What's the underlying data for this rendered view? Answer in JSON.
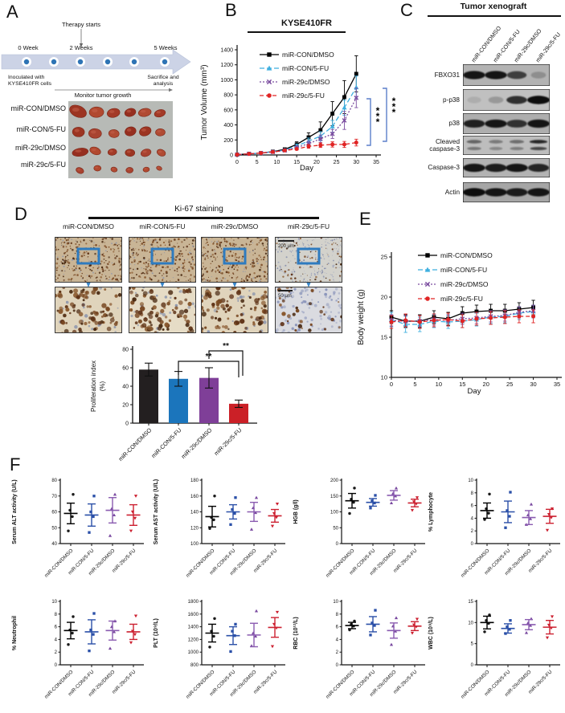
{
  "figure": {
    "groups": [
      "miR-CON/DMSO",
      "miR-CON/5-FU",
      "miR-29c/DMSO",
      "miR-29c/5-FU"
    ],
    "mean_colors": [
      "#000000",
      "#2b50a8",
      "#8a5bb0",
      "#cc2030"
    ],
    "point_colors": [
      "#1a1a1a",
      "#2b50a8",
      "#7a4aa0",
      "#cc2030"
    ],
    "bracket_color": "#5b7fca"
  },
  "panel_a": {
    "label": "A",
    "therapy_label": "Therapy starts",
    "week_labels": [
      "0 Week",
      "2 Weeks",
      "5 Weeks"
    ],
    "start_note_line1": "Inoculated with",
    "start_note_line2": "KYSE410FR cells",
    "end_note_line1": "Sacrifice and",
    "end_note_line2": "analysis",
    "monitor_label": "Monitor tumor growth",
    "row_labels": [
      "miR-CON/DMSO",
      "miR-CON/5-FU",
      "miR-29c/DMSO",
      "miR-29c/5-FU"
    ]
  },
  "panel_b": {
    "label": "B"
  },
  "panel_c": {
    "label": "C",
    "title": "Tumor xenograft",
    "lanes": [
      "miR-CON/DMSO",
      "miR-CON/5-FU",
      "miR-29c/DMSO",
      "miR-29c/5-FU"
    ],
    "rows": [
      {
        "label": "FBXO31",
        "bands": [
          0.95,
          0.95,
          0.7,
          0.22
        ],
        "double": false
      },
      {
        "label": "p-p38",
        "bands": [
          0.1,
          0.22,
          0.8,
          1.0
        ],
        "double": false
      },
      {
        "label": "p38",
        "bands": [
          0.88,
          0.95,
          0.78,
          0.95
        ],
        "double": false
      },
      {
        "label": "Cleaved\ncaspase-3",
        "bands": [
          0.5,
          0.38,
          0.45,
          0.85
        ],
        "double": true
      },
      {
        "label": "Caspase-3",
        "bands": [
          0.95,
          0.9,
          0.95,
          0.85
        ],
        "double": false
      },
      {
        "label": "Actin",
        "bands": [
          1.0,
          0.95,
          0.9,
          0.95
        ],
        "double": false
      }
    ]
  },
  "panel_d": {
    "label": "D",
    "title": "Ki-67 staining",
    "columns": [
      "miR-CON/DMSO",
      "miR-CON/5-FU",
      "miR-29c/DMSO",
      "miR-29c/5-FU"
    ],
    "scalebar_top": "200 μm",
    "scalebar_bottom": "50 μm"
  },
  "panel_e": {
    "label": "E"
  },
  "panel_f": {
    "label": "F"
  },
  "chart_data": [
    {
      "id": "tumor-volume",
      "type": "line",
      "title": "KYSE410FR",
      "xlabel": "Day",
      "ylabel": "Tumor Volume (mm³)",
      "x": [
        0,
        3,
        6,
        9,
        12,
        15,
        18,
        21,
        24,
        27,
        30
      ],
      "xlim": [
        0,
        35
      ],
      "ylim": [
        0,
        1400
      ],
      "xticks": [
        0,
        5,
        10,
        15,
        20,
        25,
        30,
        35
      ],
      "yticks": [
        0,
        200,
        400,
        600,
        800,
        1000,
        1200,
        1400
      ],
      "grid": false,
      "legend_position": "top-left",
      "series": [
        {
          "name": "miR-CON/DMSO",
          "color": "#000000",
          "marker": "square",
          "dash": "solid",
          "values": [
            5,
            15,
            25,
            45,
            75,
            140,
            235,
            330,
            550,
            770,
            1080
          ],
          "errors": [
            3,
            5,
            8,
            12,
            20,
            35,
            60,
            110,
            160,
            220,
            240
          ]
        },
        {
          "name": "miR-CON/5-FU",
          "color": "#3fafdf",
          "marker": "triangle",
          "dash": "6,3",
          "values": [
            5,
            15,
            25,
            42,
            65,
            120,
            185,
            250,
            380,
            630,
            900
          ],
          "errors": [
            3,
            5,
            8,
            10,
            15,
            25,
            40,
            60,
            80,
            100,
            150
          ]
        },
        {
          "name": "miR-29c/DMSO",
          "color": "#7c4ea0",
          "marker": "x",
          "dash": "2,2",
          "values": [
            5,
            15,
            25,
            40,
            60,
            100,
            150,
            215,
            280,
            460,
            760
          ],
          "errors": [
            3,
            5,
            8,
            10,
            15,
            20,
            35,
            50,
            60,
            120,
            130
          ]
        },
        {
          "name": "miR-29c/5-FU",
          "color": "#e02424",
          "marker": "circle",
          "dash": "5,3",
          "values": [
            5,
            15,
            25,
            40,
            60,
            80,
            115,
            130,
            140,
            140,
            165
          ],
          "errors": [
            3,
            5,
            8,
            10,
            12,
            15,
            25,
            30,
            35,
            40,
            45
          ]
        }
      ],
      "significance": [
        {
          "label": "***"
        },
        {
          "label": "***"
        }
      ]
    },
    {
      "id": "proliferation-index",
      "type": "bar",
      "ylabel_line1": "Proliferation index",
      "ylabel_line2": "(%)",
      "categories": [
        "miR-CON/DMSO",
        "miR-CON/5-FU",
        "miR-29c/DMSO",
        "miR-29c/5-FU"
      ],
      "values": [
        58,
        48,
        49,
        21
      ],
      "errors": [
        7,
        8,
        11,
        4
      ],
      "colors": [
        "#231f20",
        "#1b75bc",
        "#7f3f98",
        "#cb2027"
      ],
      "ylim": [
        0,
        80
      ],
      "yticks": [
        0,
        20,
        40,
        60,
        80
      ],
      "significance": [
        {
          "from": 1,
          "to": 3,
          "label": "**"
        },
        {
          "from": 2,
          "to": 3,
          "label": "**"
        }
      ]
    },
    {
      "id": "body-weight",
      "type": "line",
      "xlabel": "Day",
      "ylabel": "Body weight (g)",
      "x": [
        0,
        3,
        6,
        9,
        12,
        15,
        18,
        21,
        24,
        27,
        30
      ],
      "xlim": [
        0,
        35
      ],
      "ylim": [
        10,
        25
      ],
      "xticks": [
        0,
        5,
        10,
        15,
        20,
        25,
        30,
        35
      ],
      "yticks": [
        10,
        15,
        20,
        25
      ],
      "grid": false,
      "legend_position": "top-left",
      "series": [
        {
          "name": "miR-CON/DMSO",
          "color": "#000000",
          "marker": "square",
          "dash": "solid",
          "values": [
            17.5,
            17.0,
            17.0,
            17.5,
            17.3,
            18.0,
            18.2,
            18.3,
            18.3,
            18.5,
            18.7
          ],
          "errors": [
            0.8,
            0.8,
            0.8,
            0.8,
            0.8,
            0.8,
            0.8,
            0.8,
            0.8,
            0.8,
            0.9
          ]
        },
        {
          "name": "miR-CON/5-FU",
          "color": "#3fafdf",
          "marker": "triangle",
          "dash": "6,3",
          "values": [
            17.2,
            16.6,
            16.6,
            17.0,
            16.9,
            17.0,
            17.2,
            17.5,
            17.6,
            18.0,
            18.2
          ],
          "errors": [
            0.9,
            1.0,
            0.9,
            0.8,
            0.8,
            0.8,
            0.8,
            0.8,
            0.8,
            0.8,
            0.8
          ]
        },
        {
          "name": "miR-29c/DMSO",
          "color": "#7c4ea0",
          "marker": "x",
          "dash": "2,2",
          "values": [
            17.1,
            17.0,
            17.0,
            17.2,
            17.1,
            17.3,
            17.4,
            17.6,
            17.7,
            18.1,
            18.3
          ],
          "errors": [
            0.7,
            0.7,
            0.7,
            0.7,
            0.7,
            0.7,
            0.7,
            0.7,
            0.7,
            0.7,
            0.7
          ]
        },
        {
          "name": "miR-29c/5-FU",
          "color": "#e02424",
          "marker": "circle",
          "dash": "5,3",
          "values": [
            16.9,
            17.1,
            16.9,
            17.1,
            17.2,
            17.0,
            17.3,
            17.4,
            17.5,
            17.6,
            17.6
          ],
          "errors": [
            0.8,
            0.8,
            0.8,
            0.8,
            0.8,
            0.8,
            0.8,
            0.8,
            0.8,
            0.8,
            0.8
          ]
        }
      ]
    },
    {
      "id": "serum-alt",
      "type": "scatter",
      "ylabel": "Serum ALT activity (U/L)",
      "ylim": [
        40,
        80
      ],
      "yticks": [
        40,
        50,
        60,
        70,
        80
      ],
      "categories": [
        "miR-CON/DMSO",
        "miR-CON/5-FU",
        "miR-29c/DMSO",
        "miR-29c/5-FU"
      ],
      "groups": [
        {
          "points": [
            48,
            57,
            61,
            71
          ],
          "mean": 59,
          "sd": 6.5
        },
        {
          "points": [
            47,
            57,
            60,
            70
          ],
          "mean": 58,
          "sd": 7
        },
        {
          "points": [
            45,
            58,
            62,
            71
          ],
          "mean": 61,
          "sd": 8
        },
        {
          "points": [
            48,
            56,
            60,
            70
          ],
          "mean": 58,
          "sd": 6.5
        }
      ]
    },
    {
      "id": "serum-ast",
      "type": "scatter",
      "ylabel": "Serum AST activity (U/L)",
      "ylim": [
        100,
        180
      ],
      "yticks": [
        100,
        120,
        140,
        160,
        180
      ],
      "categories": [
        "miR-CON/DMSO",
        "miR-CON/5-FU",
        "miR-29c/DMSO",
        "miR-29c/5-FU"
      ],
      "groups": [
        {
          "points": [
            119,
            130,
            133,
            160
          ],
          "mean": 134,
          "sd": 13
        },
        {
          "points": [
            124,
            138,
            143,
            158
          ],
          "mean": 140,
          "sd": 9
        },
        {
          "points": [
            118,
            139,
            145,
            158
          ],
          "mean": 140,
          "sd": 12
        },
        {
          "points": [
            122,
            133,
            138,
            150
          ],
          "mean": 135,
          "sd": 8
        }
      ]
    },
    {
      "id": "hgb",
      "type": "scatter",
      "ylabel": "HGB  (g/l)",
      "ylim": [
        0,
        200
      ],
      "yticks": [
        0,
        50,
        100,
        150,
        200
      ],
      "categories": [
        "miR-CON/DMSO",
        "miR-CON/5-FU",
        "miR-29c/DMSO",
        "miR-29c/5-FU"
      ],
      "groups": [
        {
          "points": [
            95,
            130,
            140,
            175
          ],
          "mean": 135,
          "sd": 23
        },
        {
          "points": [
            112,
            128,
            135,
            152
          ],
          "mean": 130,
          "sd": 12
        },
        {
          "points": [
            128,
            150,
            158,
            175
          ],
          "mean": 152,
          "sd": 15
        },
        {
          "points": [
            105,
            125,
            132,
            145
          ],
          "mean": 128,
          "sd": 12
        }
      ]
    },
    {
      "id": "lymphocyte",
      "type": "scatter",
      "ylabel": "% Lymphocyte",
      "ylim": [
        0,
        10
      ],
      "yticks": [
        0,
        2,
        4,
        6,
        8,
        10
      ],
      "categories": [
        "miR-CON/DMSO",
        "miR-CON/5-FU",
        "miR-29c/DMSO",
        "miR-29c/5-FU"
      ],
      "groups": [
        {
          "points": [
            3.8,
            4.8,
            5.5,
            7.8
          ],
          "mean": 5.2,
          "sd": 1.2
        },
        {
          "points": [
            2.5,
            4.3,
            5.2,
            8.1
          ],
          "mean": 5.0,
          "sd": 1.7
        },
        {
          "points": [
            3.0,
            3.9,
            4.5,
            6.2
          ],
          "mean": 4.1,
          "sd": 1.1
        },
        {
          "points": [
            2.1,
            4.1,
            4.6,
            5.5
          ],
          "mean": 4.3,
          "sd": 1.1
        }
      ]
    },
    {
      "id": "neutrophil",
      "type": "scatter",
      "ylabel": "% Neutrophil",
      "ylim": [
        0,
        10
      ],
      "yticks": [
        0,
        2,
        4,
        6,
        8,
        10
      ],
      "categories": [
        "miR-CON/DMSO",
        "miR-CON/5-FU",
        "miR-29c/DMSO",
        "miR-29c/5-FU"
      ],
      "groups": [
        {
          "points": [
            3.2,
            5.0,
            5.5,
            7.6
          ],
          "mean": 5.4,
          "sd": 1.3
        },
        {
          "points": [
            2.2,
            4.8,
            5.5,
            8.1
          ],
          "mean": 5.2,
          "sd": 1.9
        },
        {
          "points": [
            2.6,
            5.2,
            6.0,
            6.9
          ],
          "mean": 5.4,
          "sd": 1.5
        },
        {
          "points": [
            3.5,
            4.8,
            5.3,
            7.7
          ],
          "mean": 5.2,
          "sd": 1.2
        }
      ]
    },
    {
      "id": "plt",
      "type": "scatter",
      "ylabel": "PLT  (10⁹/L)",
      "ylim": [
        800,
        1800
      ],
      "yticks": [
        800,
        1000,
        1200,
        1400,
        1600,
        1800
      ],
      "categories": [
        "miR-CON/DMSO",
        "miR-CON/5-FU",
        "miR-29c/DMSO",
        "miR-29c/5-FU"
      ],
      "groups": [
        {
          "points": [
            1080,
            1250,
            1330,
            1530
          ],
          "mean": 1300,
          "sd": 140
        },
        {
          "points": [
            1010,
            1260,
            1330,
            1440
          ],
          "mean": 1260,
          "sd": 140
        },
        {
          "points": [
            1100,
            1250,
            1300,
            1650
          ],
          "mean": 1270,
          "sd": 185
        },
        {
          "points": [
            1090,
            1380,
            1440,
            1630
          ],
          "mean": 1390,
          "sd": 155
        }
      ]
    },
    {
      "id": "rbc",
      "type": "scatter",
      "ylabel": "RBC  (10¹²/L)",
      "ylim": [
        0,
        10
      ],
      "yticks": [
        0,
        2,
        4,
        6,
        8,
        10
      ],
      "categories": [
        "miR-CON/DMSO",
        "miR-CON/5-FU",
        "miR-29c/DMSO",
        "miR-29c/5-FU"
      ],
      "groups": [
        {
          "points": [
            5.5,
            6.1,
            6.4,
            6.9
          ],
          "mean": 6.2,
          "sd": 0.5
        },
        {
          "points": [
            4.7,
            6.2,
            6.6,
            8.6
          ],
          "mean": 6.4,
          "sd": 1.2
        },
        {
          "points": [
            3.2,
            5.3,
            6.1,
            7.4
          ],
          "mean": 5.4,
          "sd": 1.2
        },
        {
          "points": [
            5.0,
            6.0,
            6.3,
            7.2
          ],
          "mean": 6.1,
          "sd": 0.7
        }
      ]
    },
    {
      "id": "wbc",
      "type": "scatter",
      "ylabel": "WBC  (10⁹/L)",
      "ylim": [
        0,
        15
      ],
      "yticks": [
        0,
        5,
        10,
        15
      ],
      "categories": [
        "miR-CON/DMSO",
        "miR-CON/5-FU",
        "miR-29c/DMSO",
        "miR-29c/5-FU"
      ],
      "groups": [
        {
          "points": [
            7.8,
            9.8,
            10.5,
            11.8
          ],
          "mean": 10.0,
          "sd": 1.5
        },
        {
          "points": [
            7.4,
            8.4,
            9.0,
            10.5
          ],
          "mean": 8.6,
          "sd": 1.1
        },
        {
          "points": [
            7.6,
            9.3,
            9.9,
            10.9
          ],
          "mean": 9.5,
          "sd": 1.2
        },
        {
          "points": [
            6.4,
            8.7,
            9.4,
            11.4
          ],
          "mean": 8.9,
          "sd": 1.6
        }
      ]
    }
  ]
}
